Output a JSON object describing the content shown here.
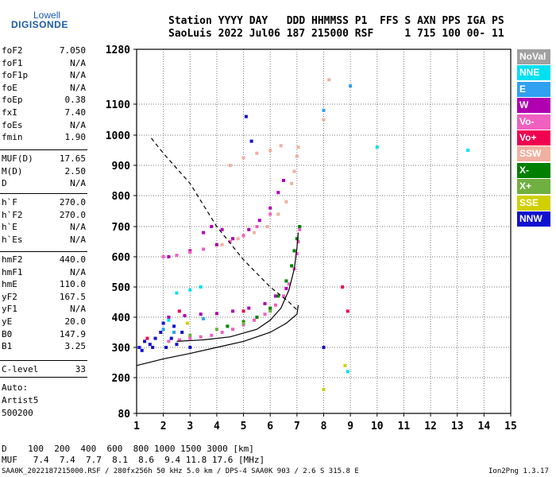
{
  "logo": {
    "line1": "Lowell",
    "line2": "DIGISONDE"
  },
  "header": {
    "line1": "Station YYYY DAY   DDD HHMMSS P1  FFS S AXN PPS IGA PS",
    "line2": "SaoLuis 2022 Jul06 187 215000 RSF     1 715 100 00- 11"
  },
  "params_group1": [
    {
      "k": "foF2",
      "v": "7.050"
    },
    {
      "k": "foF1",
      "v": "N/A"
    },
    {
      "k": "foF1p",
      "v": "N/A"
    },
    {
      "k": "foE",
      "v": "N/A"
    },
    {
      "k": "foEp",
      "v": "0.38"
    },
    {
      "k": "fxI",
      "v": "7.40"
    },
    {
      "k": "foEs",
      "v": "N/A"
    },
    {
      "k": "fmin",
      "v": "1.90"
    }
  ],
  "params_group2": [
    {
      "k": "MUF(D)",
      "v": "17.65"
    },
    {
      "k": "M(D)",
      "v": "2.50"
    },
    {
      "k": "D",
      "v": "N/A"
    }
  ],
  "params_group3": [
    {
      "k": "h`F",
      "v": "270.0"
    },
    {
      "k": "h`F2",
      "v": "270.0"
    },
    {
      "k": "h`E",
      "v": "N/A"
    },
    {
      "k": "h`Es",
      "v": "N/A"
    }
  ],
  "params_group4": [
    {
      "k": "hmF2",
      "v": "440.0"
    },
    {
      "k": "hmF1",
      "v": "N/A"
    },
    {
      "k": "hmE",
      "v": "110.0"
    },
    {
      "k": "yF2",
      "v": "167.5"
    },
    {
      "k": "yF1",
      "v": "N/A"
    },
    {
      "k": "yE",
      "v": "20.0"
    },
    {
      "k": "B0",
      "v": "147.9"
    },
    {
      "k": "B1",
      "v": "3.25"
    }
  ],
  "clevel": {
    "k": "C-level",
    "v": "33"
  },
  "auto": {
    "line1": "Auto:",
    "line2": "Artist5",
    "line3": "500200"
  },
  "muf_table": {
    "line1": "D    100  200  400  600  800 1000 1500 3000 [km]",
    "line2": "MUF   7.4  7.4  7.7  8.1  8.6  9.4 11.8 17.6 [MHz]"
  },
  "footer": {
    "left": "SAA0K_2022187215000.RSF / 280fx256h 50 kHz 5.0 km / DPS-4 SAA0K 903 / 2.6 S 315.8 E",
    "right": "Ion2Png 1.3.17"
  },
  "legend": [
    {
      "label": "NoVal",
      "color": "#a0a0a0"
    },
    {
      "label": "NNE",
      "color": "#00e0f0"
    },
    {
      "label": "E",
      "color": "#30a0f0"
    },
    {
      "label": "W",
      "color": "#b000b0"
    },
    {
      "label": "Vo-",
      "color": "#f060c0"
    },
    {
      "label": "Vo+",
      "color": "#f00050"
    },
    {
      "label": "SSW",
      "color": "#f0b0a0"
    },
    {
      "label": "X-",
      "color": "#008000"
    },
    {
      "label": "X+",
      "color": "#70b040"
    },
    {
      "label": "SSE",
      "color": "#d0d000"
    },
    {
      "label": "NNW",
      "color": "#1010d0"
    }
  ],
  "chart_data": {
    "type": "scatter",
    "x_ticks": [
      "1",
      "2",
      "3",
      "4",
      "5",
      "6",
      "7",
      "8",
      "9",
      "10",
      "11",
      "12",
      "13",
      "14",
      "15"
    ],
    "y_ticks": [
      "80",
      "200",
      "300",
      "400",
      "500",
      "600",
      "700",
      "800",
      "900",
      "1000",
      "1100",
      "1280"
    ],
    "xlim": [
      1,
      15
    ],
    "ylim": [
      80,
      1280
    ],
    "grid": true,
    "series": [
      {
        "name": "W",
        "values": [
          [
            2.2,
            400
          ],
          [
            2.8,
            405
          ],
          [
            3.4,
            410
          ],
          [
            4.0,
            412
          ],
          [
            4.6,
            420
          ],
          [
            5.2,
            430
          ],
          [
            5.8,
            445
          ],
          [
            6.2,
            470
          ],
          [
            6.6,
            495
          ],
          [
            2.2,
            600
          ],
          [
            3.0,
            620
          ],
          [
            4.0,
            640
          ],
          [
            4.6,
            660
          ],
          [
            5.2,
            690
          ],
          [
            5.6,
            720
          ],
          [
            6.0,
            760
          ],
          [
            6.3,
            810
          ],
          [
            6.5,
            850
          ],
          [
            3.5,
            680
          ],
          [
            3.8,
            700
          ],
          [
            4.2,
            690
          ]
        ]
      },
      {
        "name": "Vo-",
        "values": [
          [
            2.2,
            320
          ],
          [
            2.6,
            325
          ],
          [
            3.0,
            330
          ],
          [
            3.4,
            335
          ],
          [
            3.8,
            340
          ],
          [
            4.2,
            350
          ],
          [
            4.6,
            360
          ],
          [
            5.0,
            375
          ],
          [
            5.4,
            390
          ],
          [
            5.8,
            410
          ],
          [
            6.2,
            440
          ],
          [
            6.5,
            470
          ],
          [
            6.7,
            510
          ],
          [
            6.9,
            560
          ],
          [
            7.0,
            610
          ],
          [
            7.05,
            650
          ],
          [
            7.1,
            690
          ],
          [
            2.0,
            600
          ],
          [
            2.5,
            605
          ],
          [
            3.0,
            615
          ],
          [
            3.5,
            625
          ],
          [
            4.5,
            650
          ],
          [
            5.0,
            670
          ],
          [
            5.5,
            700
          ],
          [
            6.0,
            740
          ]
        ]
      },
      {
        "name": "SSW",
        "values": [
          [
            4.2,
            640
          ],
          [
            4.8,
            660
          ],
          [
            5.4,
            680
          ],
          [
            5.9,
            700
          ],
          [
            6.3,
            740
          ],
          [
            6.6,
            780
          ],
          [
            6.8,
            840
          ],
          [
            6.9,
            880
          ],
          [
            7.0,
            930
          ],
          [
            7.05,
            960
          ],
          [
            4.5,
            900
          ],
          [
            5.0,
            925
          ],
          [
            5.5,
            940
          ],
          [
            6.0,
            950
          ],
          [
            6.4,
            965
          ],
          [
            8.0,
            1050
          ],
          [
            8.2,
            1180
          ]
        ]
      },
      {
        "name": "X-",
        "values": [
          [
            4.4,
            370
          ],
          [
            5.0,
            385
          ],
          [
            5.5,
            400
          ],
          [
            6.0,
            430
          ],
          [
            6.3,
            470
          ],
          [
            6.6,
            520
          ],
          [
            6.8,
            570
          ],
          [
            6.9,
            620
          ],
          [
            7.0,
            660
          ],
          [
            7.1,
            700
          ]
        ]
      },
      {
        "name": "X+",
        "values": [
          [
            3.0,
            340
          ],
          [
            4.0,
            360
          ],
          [
            5.0,
            380
          ],
          [
            6.0,
            420
          ]
        ]
      },
      {
        "name": "NNW",
        "values": [
          [
            1.1,
            300
          ],
          [
            1.3,
            320
          ],
          [
            1.5,
            310
          ],
          [
            1.7,
            330
          ],
          [
            1.9,
            350
          ],
          [
            2.1,
            300
          ],
          [
            2.3,
            330
          ],
          [
            2.5,
            310
          ],
          [
            2.7,
            350
          ],
          [
            1.2,
            290
          ],
          [
            1.6,
            300
          ],
          [
            2.0,
            380
          ],
          [
            2.4,
            370
          ],
          [
            3.0,
            300
          ],
          [
            8.0,
            300
          ],
          [
            5.1,
            1060
          ],
          [
            5.3,
            980
          ]
        ]
      },
      {
        "name": "NNE",
        "values": [
          [
            2.5,
            480
          ],
          [
            3.0,
            490
          ],
          [
            3.4,
            500
          ],
          [
            2.2,
            390
          ],
          [
            10.0,
            960
          ],
          [
            13.4,
            950
          ],
          [
            8.9,
            220
          ]
        ]
      },
      {
        "name": "E",
        "values": [
          [
            2.0,
            360
          ],
          [
            2.4,
            350
          ],
          [
            3.5,
            395
          ],
          [
            8.0,
            1080
          ],
          [
            9.0,
            1160
          ]
        ]
      },
      {
        "name": "Vo+",
        "values": [
          [
            1.4,
            330
          ],
          [
            2.6,
            420
          ],
          [
            5.0,
            420
          ],
          [
            8.7,
            500
          ],
          [
            8.9,
            420
          ]
        ]
      },
      {
        "name": "SSE",
        "values": [
          [
            2.9,
            380
          ],
          [
            8.0,
            160
          ],
          [
            8.8,
            240
          ]
        ]
      }
    ],
    "curves": [
      {
        "style": "dashed",
        "values": [
          [
            1.55,
            990
          ],
          [
            2.0,
            940
          ],
          [
            3.0,
            840
          ],
          [
            4.0,
            700
          ],
          [
            5.0,
            590
          ],
          [
            6.0,
            500
          ],
          [
            6.7,
            450
          ],
          [
            7.05,
            420
          ]
        ]
      },
      {
        "style": "solid",
        "values": [
          [
            1.0,
            240
          ],
          [
            2.0,
            262
          ],
          [
            3.0,
            280
          ],
          [
            4.0,
            300
          ],
          [
            5.0,
            320
          ],
          [
            6.0,
            350
          ],
          [
            6.6,
            380
          ],
          [
            7.0,
            410
          ],
          [
            7.05,
            440
          ]
        ]
      },
      {
        "style": "solid",
        "values": [
          [
            2.5,
            320
          ],
          [
            3.5,
            325
          ],
          [
            4.5,
            335
          ],
          [
            5.5,
            360
          ],
          [
            6.0,
            390
          ],
          [
            6.4,
            430
          ],
          [
            6.7,
            490
          ],
          [
            6.9,
            560
          ],
          [
            7.0,
            630
          ],
          [
            7.05,
            680
          ]
        ]
      }
    ]
  }
}
